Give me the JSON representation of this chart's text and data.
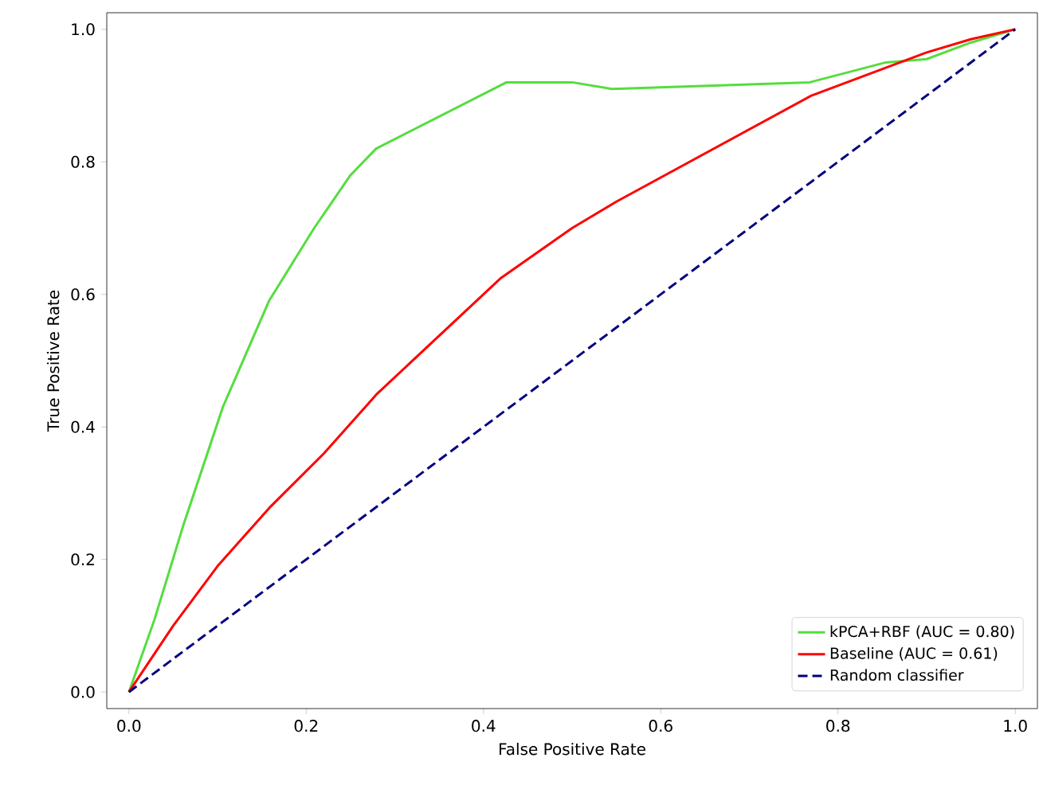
{
  "chart_data": {
    "type": "line",
    "xlabel": "False Positive Rate",
    "ylabel": "True Positive Rate",
    "xlim": [
      -0.025,
      1.025
    ],
    "ylim": [
      -0.025,
      1.025
    ],
    "xticks": [
      {
        "value": 0,
        "label": "0.0"
      },
      {
        "value": 0.2,
        "label": "0.2"
      },
      {
        "value": 0.4,
        "label": "0.4"
      },
      {
        "value": 0.6,
        "label": "0.6"
      },
      {
        "value": 0.8,
        "label": "0.8"
      },
      {
        "value": 1,
        "label": "1.0"
      }
    ],
    "yticks": [
      {
        "value": 0,
        "label": "0.0"
      },
      {
        "value": 0.2,
        "label": "0.2"
      },
      {
        "value": 0.4,
        "label": "0.4"
      },
      {
        "value": 0.6,
        "label": "0.6"
      },
      {
        "value": 0.8,
        "label": "0.8"
      },
      {
        "value": 1,
        "label": "1.0"
      }
    ],
    "legend": "bottom right",
    "grid": false,
    "marker": "none",
    "series": [
      {
        "name": "kPCA+RBF (AUC = 0.80)",
        "color": "#55dd3f",
        "line_style": "solid",
        "x": [
          0,
          0.029,
          0.061,
          0.106,
          0.158,
          0.209,
          0.25,
          0.279,
          0.426,
          0.5,
          0.545,
          0.768,
          0.854,
          0.9,
          0.95,
          1
        ],
        "values": [
          0,
          0.11,
          0.25,
          0.43,
          0.59,
          0.7,
          0.78,
          0.82,
          0.92,
          0.92,
          0.91,
          0.92,
          0.95,
          0.955,
          0.98,
          1
        ]
      },
      {
        "name": "Baseline (AUC = 0.61)",
        "color": "#ff0000",
        "line_style": "solid",
        "x": [
          0,
          0.05,
          0.1,
          0.16,
          0.22,
          0.28,
          0.42,
          0.5,
          0.55,
          0.77,
          0.9,
          0.95,
          1
        ],
        "values": [
          0,
          0.1,
          0.19,
          0.28,
          0.36,
          0.45,
          0.625,
          0.7,
          0.74,
          0.9,
          0.965,
          0.985,
          1
        ]
      },
      {
        "name": "Random classifier",
        "color": "#000080",
        "line_style": "dashed",
        "x": [
          0,
          1
        ],
        "values": [
          0,
          1
        ]
      }
    ]
  }
}
